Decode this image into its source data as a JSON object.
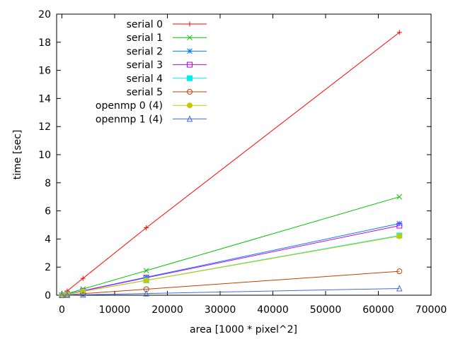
{
  "chart_data": {
    "type": "line",
    "title": "",
    "xlabel": "area [1000 * pixel^2]",
    "ylabel": "time [sec]",
    "xlim": [
      -1000,
      70000
    ],
    "ylim": [
      0,
      20
    ],
    "xticks": [
      0,
      10000,
      20000,
      30000,
      40000,
      50000,
      60000,
      70000
    ],
    "xtick_labels": [
      "0",
      "10000",
      "20000",
      "30000",
      "40000",
      "50000",
      "60000",
      "70000"
    ],
    "yticks": [
      0,
      2,
      4,
      6,
      8,
      10,
      12,
      14,
      16,
      18,
      20
    ],
    "ytick_labels": [
      "0",
      "2",
      "4",
      "6",
      "8",
      "10",
      "12",
      "14",
      "16",
      "18",
      "20"
    ],
    "grid": false,
    "legend_position": "top-left",
    "x": [
      0,
      1000,
      4000,
      16000,
      64000
    ],
    "series": [
      {
        "name": "serial 0",
        "color": "#ff0000",
        "marker": "plus",
        "values": [
          0.0,
          0.3,
          1.2,
          4.8,
          18.7
        ]
      },
      {
        "name": "serial 1",
        "color": "#00c000",
        "marker": "cross",
        "values": [
          0.0,
          0.11,
          0.44,
          1.75,
          7.0
        ]
      },
      {
        "name": "serial 2",
        "color": "#0080ff",
        "marker": "star",
        "values": [
          0.0,
          0.08,
          0.32,
          1.28,
          5.1
        ]
      },
      {
        "name": "serial 3",
        "color": "#c000ff",
        "marker": "box",
        "values": [
          0.0,
          0.08,
          0.31,
          1.24,
          4.95
        ]
      },
      {
        "name": "serial 4",
        "color": "#00eeee",
        "marker": "filled-box",
        "values": [
          0.0,
          0.07,
          0.27,
          1.06,
          4.25
        ]
      },
      {
        "name": "serial 5",
        "color": "#c04000",
        "marker": "circle",
        "values": [
          0.0,
          0.03,
          0.11,
          0.43,
          1.7
        ]
      },
      {
        "name": "openmp 0 (4)",
        "color": "#c8c800",
        "marker": "filled-circle",
        "values": [
          0.0,
          0.07,
          0.27,
          1.05,
          4.2
        ]
      },
      {
        "name": "openmp 1 (4)",
        "color": "#4169e1",
        "marker": "triangle",
        "values": [
          0.0,
          0.01,
          0.03,
          0.12,
          0.48
        ]
      }
    ]
  }
}
